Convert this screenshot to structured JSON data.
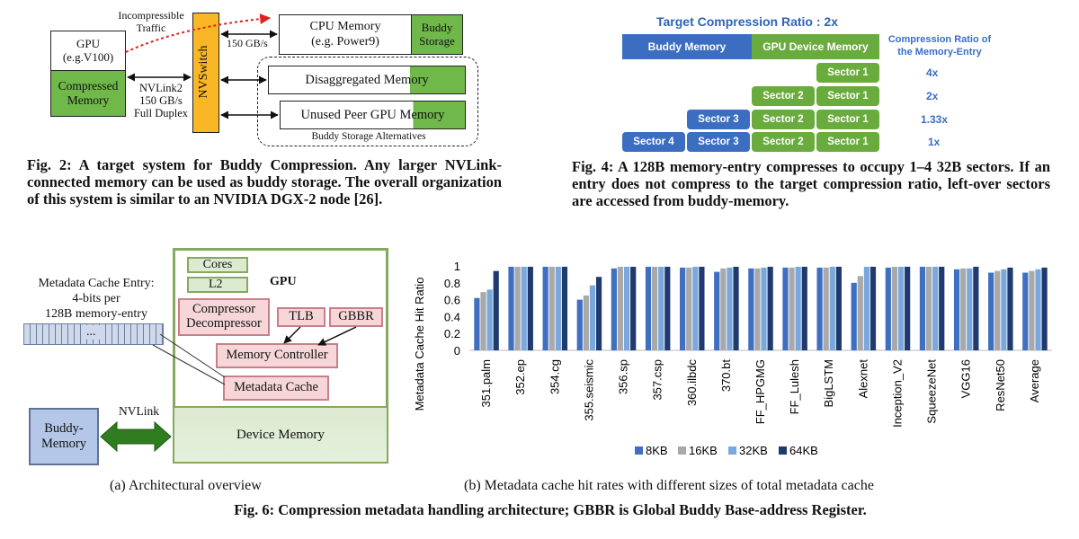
{
  "fig2": {
    "gpu_label": "GPU\n(e.g.V100)",
    "compressed_label": "Compressed\nMemory",
    "incompressible_label": "Incompressible\nTraffic",
    "nvlink_label": "NVLink2\n150 GB/s\nFull Duplex",
    "nvswitch_label": "NVSwitch",
    "bandwidth_label": "150 GB/s",
    "cpu_memory_label": "CPU Memory\n(e.g. Power9)",
    "buddy_storage_label": "Buddy\nStorage",
    "disaggregated_label": "Disaggregated Memory",
    "unused_peer_label": "Unused Peer GPU Memory",
    "alternatives_label": "Buddy Storage Alternatives",
    "caption": "Fig. 2: A target system for Buddy Compression. Any larger NVLink-connected memory can be used as buddy storage. The overall organization of this system is similar to an NVIDIA DGX-2 node [26]."
  },
  "fig4": {
    "title": "Target Compression Ratio : 2x",
    "buddy_memory": "Buddy Memory",
    "gpu_device_memory": "GPU Device Memory",
    "ratio_header": "Compression Ratio of\nthe Memory-Entry",
    "sector1": "Sector 1",
    "sector2": "Sector 2",
    "sector3": "Sector 3",
    "sector4": "Sector 4",
    "ratios": [
      "4x",
      "2x",
      "1.33x",
      "1x"
    ],
    "colors": {
      "green": "#6aab3e",
      "blue": "#3b6ec0"
    },
    "caption": "Fig. 4: A 128B memory-entry compresses to occupy 1–4 32B sectors. If an entry does not compress to the target compression ratio, left-over sectors are accessed from buddy-memory."
  },
  "fig6a": {
    "metadata_entry_label": "Metadata Cache Entry:\n4-bits per\n128B memory-entry",
    "dots": "...",
    "gpu_label": "GPU",
    "cores": "Cores",
    "l2": "L2",
    "compressor": "Compressor\nDecompressor",
    "tlb": "TLB",
    "gbbr": "GBBR",
    "memory_controller": "Memory Controller",
    "metadata_cache": "Metadata Cache",
    "nvlink": "NVLink",
    "buddy_memory": "Buddy-\nMemory",
    "device_memory": "Device Memory",
    "subcaption": "(a) Architectural overview"
  },
  "fig6b": {
    "subcaption": "(b) Metadata cache hit rates with different sizes of total metadata cache"
  },
  "fig6_caption": "Fig. 6: Compression metadata handling architecture; GBBR is Global Buddy Base-address Register.",
  "chart_data": {
    "type": "bar",
    "title": "",
    "xlabel": "",
    "ylabel": "Metadata Cache Hit Ratio",
    "ylim": [
      0,
      1
    ],
    "yticks": [
      "0",
      "0.2",
      "0.4",
      "0.6",
      "0.8",
      "1"
    ],
    "categories": [
      "351.palm",
      "352.ep",
      "354.cg",
      "355.seismic",
      "356.sp",
      "357.csp",
      "360.ilbdc",
      "370.bt",
      "FF_HPGMG",
      "FF_Lulesh",
      "BigLSTM",
      "Alexnet",
      "Inception_V2",
      "SqueezeNet",
      "VGG16",
      "ResNet50",
      "Average"
    ],
    "series": [
      {
        "name": "8KB",
        "color": "#3f6fc0",
        "values": [
          0.62,
          0.99,
          0.99,
          0.6,
          0.97,
          0.99,
          0.98,
          0.93,
          0.97,
          0.98,
          0.98,
          0.8,
          0.98,
          0.99,
          0.96,
          0.92,
          0.92
        ]
      },
      {
        "name": "16KB",
        "color": "#a9a9a9",
        "values": [
          0.69,
          0.99,
          0.99,
          0.65,
          0.99,
          0.99,
          0.98,
          0.97,
          0.97,
          0.98,
          0.98,
          0.88,
          0.99,
          0.99,
          0.97,
          0.94,
          0.94
        ]
      },
      {
        "name": "32KB",
        "color": "#7aa8dc",
        "values": [
          0.72,
          0.99,
          0.99,
          0.77,
          0.99,
          0.99,
          0.99,
          0.98,
          0.98,
          0.99,
          0.99,
          0.99,
          0.99,
          0.99,
          0.97,
          0.96,
          0.96
        ]
      },
      {
        "name": "64KB",
        "color": "#1f3a6e",
        "values": [
          0.94,
          0.99,
          0.99,
          0.87,
          0.99,
          0.99,
          0.99,
          0.99,
          0.99,
          0.99,
          0.99,
          0.99,
          0.99,
          0.99,
          0.99,
          0.98,
          0.98
        ]
      }
    ],
    "legend_position": "bottom"
  }
}
